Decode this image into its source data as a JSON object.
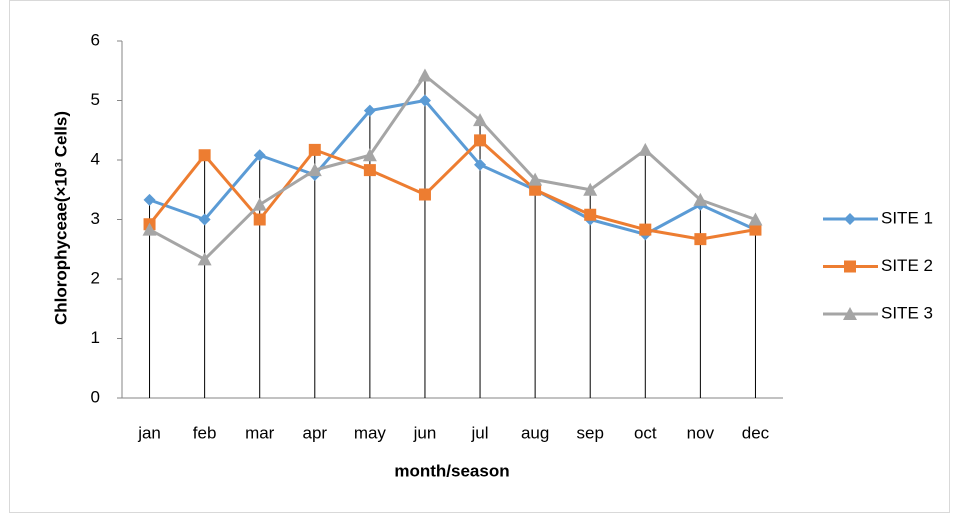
{
  "chart_data": {
    "type": "line",
    "y_label": "Chlorophyceae(×10³ Cells)",
    "x_label": "month/season",
    "categories": [
      "jan",
      "feb",
      "mar",
      "apr",
      "may",
      "jun",
      "jul",
      "aug",
      "sep",
      "oct",
      "nov",
      "dec"
    ],
    "series": [
      {
        "name": "SITE 1",
        "color": "#5b9bd5",
        "marker": "diamond",
        "values": [
          3.33,
          3.0,
          4.08,
          3.75,
          4.83,
          5.0,
          3.92,
          3.5,
          3.0,
          2.75,
          3.25,
          2.83
        ]
      },
      {
        "name": "SITE 2",
        "color": "#ed7d31",
        "marker": "square",
        "values": [
          2.92,
          4.08,
          3.0,
          4.17,
          3.83,
          3.42,
          4.33,
          3.5,
          3.08,
          2.83,
          2.67,
          2.83
        ]
      },
      {
        "name": "SITE 3",
        "color": "#a5a5a5",
        "marker": "triangle",
        "values": [
          2.83,
          2.33,
          3.25,
          3.83,
          4.08,
          5.42,
          4.67,
          3.67,
          3.5,
          4.17,
          3.33,
          3.0
        ]
      }
    ],
    "ylim": [
      0,
      6
    ],
    "yticks": [
      0,
      1,
      2,
      3,
      4,
      5,
      6
    ],
    "drop_lines": true,
    "legend": "right"
  }
}
